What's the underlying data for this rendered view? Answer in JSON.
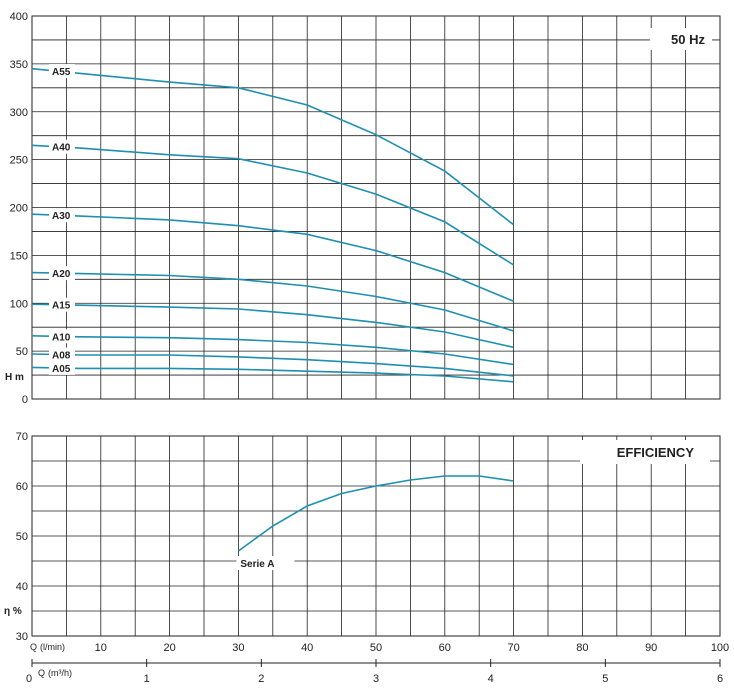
{
  "chart_data": [
    {
      "type": "line",
      "title": "50 Hz",
      "ylabel": "H m",
      "xlabel": "",
      "xlim": [
        0,
        100
      ],
      "ylim": [
        0,
        400
      ],
      "y_ticks": [
        "0",
        "50",
        "100",
        "150",
        "200",
        "250",
        "300",
        "350",
        "400"
      ],
      "grid": true,
      "series": [
        {
          "name": "A55",
          "x": [
            0,
            7,
            20,
            30,
            40,
            50,
            60,
            70
          ],
          "y": [
            345,
            340,
            331,
            325,
            307,
            276,
            238,
            182
          ]
        },
        {
          "name": "A40",
          "x": [
            0,
            7,
            20,
            30,
            40,
            50,
            60,
            70
          ],
          "y": [
            265,
            262,
            255,
            251,
            236,
            214,
            185,
            140
          ]
        },
        {
          "name": "A30",
          "x": [
            0,
            7,
            20,
            30,
            40,
            50,
            60,
            70
          ],
          "y": [
            193,
            191,
            187,
            181,
            172,
            155,
            132,
            102
          ]
        },
        {
          "name": "A20",
          "x": [
            0,
            7,
            20,
            30,
            40,
            50,
            60,
            70
          ],
          "y": [
            132,
            131,
            129,
            125,
            118,
            107,
            93,
            71
          ]
        },
        {
          "name": "A15",
          "x": [
            0,
            7,
            20,
            30,
            40,
            50,
            60,
            70
          ],
          "y": [
            99,
            98,
            96,
            94,
            88,
            80,
            70,
            54
          ]
        },
        {
          "name": "A10",
          "x": [
            0,
            7,
            20,
            30,
            40,
            50,
            60,
            70
          ],
          "y": [
            66,
            65,
            64,
            62,
            59,
            54,
            47,
            36
          ]
        },
        {
          "name": "A08",
          "x": [
            0,
            7,
            20,
            30,
            40,
            50,
            60,
            70
          ],
          "y": [
            47,
            46,
            46,
            44,
            41,
            37,
            32,
            24
          ]
        },
        {
          "name": "A05",
          "x": [
            0,
            7,
            20,
            30,
            40,
            50,
            60,
            70
          ],
          "y": [
            33,
            32,
            32,
            31,
            29,
            27,
            24,
            18
          ]
        }
      ]
    },
    {
      "type": "line",
      "title": "EFFICIENCY",
      "ylabel": "η %",
      "xlabel": "",
      "xlim": [
        0,
        100
      ],
      "ylim": [
        30,
        70
      ],
      "y_ticks": [
        "30",
        "40",
        "50",
        "60",
        "70"
      ],
      "grid": true,
      "series": [
        {
          "name": "Serie A",
          "x": [
            30,
            35,
            40,
            45,
            50,
            55,
            60,
            65,
            70
          ],
          "y": [
            47,
            52,
            56,
            58.5,
            60,
            61.2,
            62,
            62,
            61
          ]
        }
      ]
    }
  ],
  "x_axes": {
    "lpm_label": "Q",
    "lpm_unit": "(l/min)",
    "lpm_ticks": [
      "10",
      "20",
      "30",
      "40",
      "50",
      "60",
      "70",
      "80",
      "90",
      "100"
    ],
    "m3h_label": "Q",
    "m3h_unit": "(m³/h)",
    "m3h_zero": "0",
    "m3h_ticks": [
      "1",
      "2",
      "3",
      "4",
      "5",
      "6"
    ]
  },
  "line_color": "#1f8fb0"
}
